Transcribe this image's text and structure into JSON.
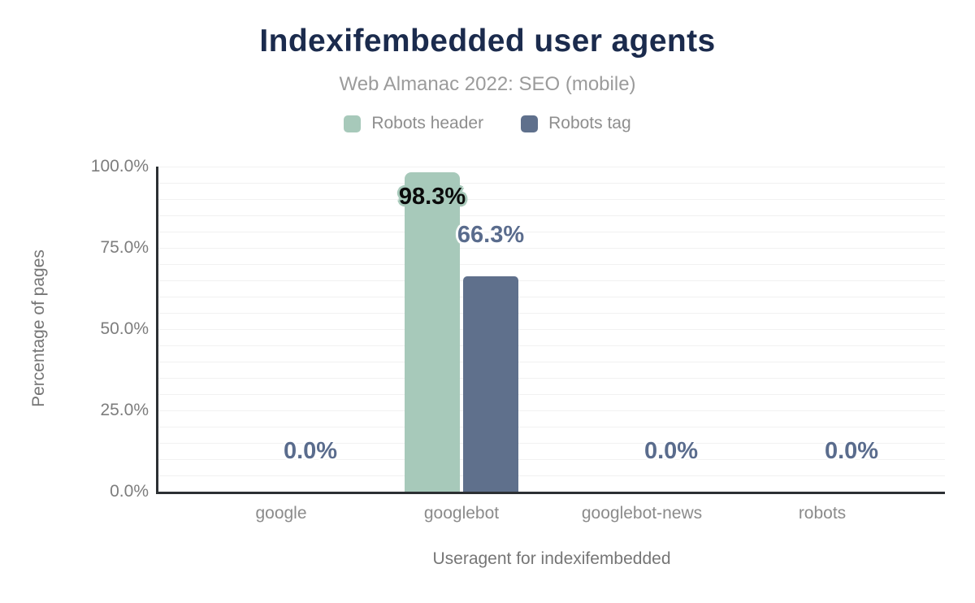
{
  "title": "Indexifembedded user agents",
  "subtitle": "Web Almanac 2022: SEO (mobile)",
  "chart_data": {
    "type": "bar",
    "categories": [
      "google",
      "googlebot",
      "googlebot-news",
      "robots"
    ],
    "series": [
      {
        "name": "Robots header",
        "color": "#a7c9ba",
        "values": [
          0,
          98.3,
          0,
          0
        ]
      },
      {
        "name": "Robots tag",
        "color": "#5f708c",
        "values": [
          0,
          66.3,
          0,
          0
        ]
      }
    ],
    "value_label_format": "one decimal + percent sign, e.g. 98.3%",
    "xlabel": "Useragent for indexifembedded",
    "ylabel": "Percentage of pages",
    "ylim": [
      0,
      100
    ],
    "ytick_labels": [
      "0.0%",
      "25.0%",
      "50.0%",
      "75.0%",
      "100.0%"
    ],
    "grid": "horizontal minor gridlines every 5%",
    "legend_position": "top center"
  },
  "colors": {
    "title": "#1b2b4d",
    "subtitle": "#9b9b9b",
    "legend": "#8e8e8e",
    "ticks": "#7d7d7d",
    "axis_title": "#767676",
    "cats": "#8b8b8b",
    "grid": "#f1f1f1",
    "axisline": "#2c3033",
    "label_dark": "#0b0b0b",
    "label_blue": "#5a6c8d",
    "background": "#ffffff"
  }
}
